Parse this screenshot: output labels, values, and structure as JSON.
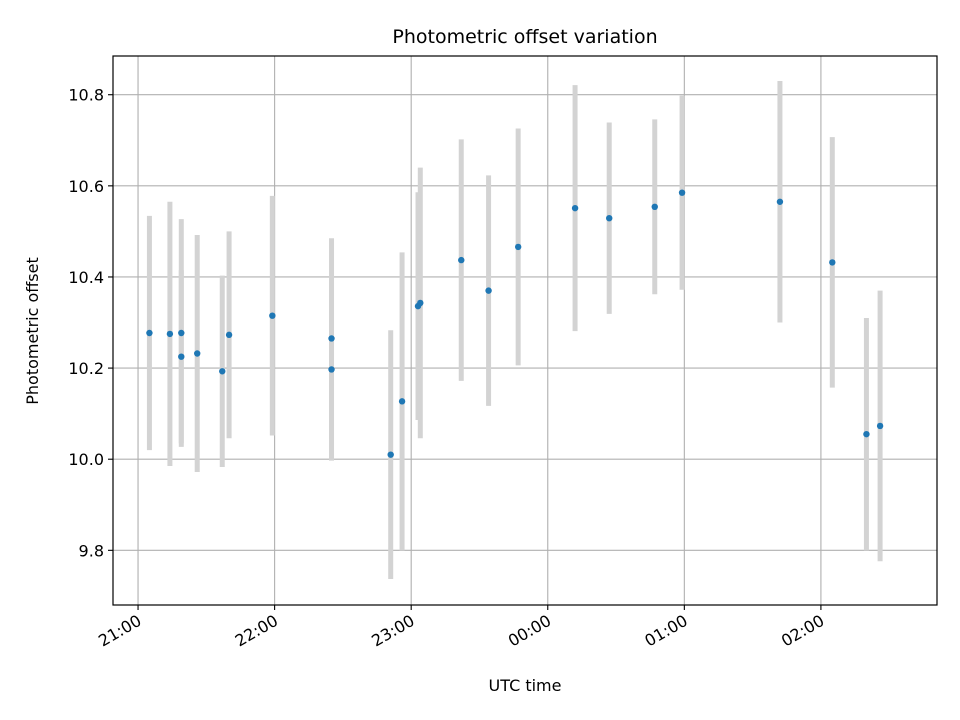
{
  "chart_data": {
    "type": "scatter",
    "title": "Photometric offset variation",
    "xlabel": "UTC time",
    "ylabel": "Photometric offset",
    "x_unit": "UTC time of day (hours, continuing past midnight)",
    "xlim": [
      "20:49",
      "26:51"
    ],
    "ylim": [
      9.68,
      10.885
    ],
    "x_ticks": [
      "21:00",
      "22:00",
      "23:00",
      "00:00",
      "01:00",
      "02:00"
    ],
    "y_ticks": [
      "9.8",
      "10.0",
      "10.2",
      "10.4",
      "10.6",
      "10.8"
    ],
    "grid": true,
    "series": [
      {
        "marker_color": "#1f77b4",
        "errorbar_color": "#d3d3d3",
        "points": [
          {
            "x": "21:05",
            "y": 10.277,
            "err": 0.257
          },
          {
            "x": "21:14",
            "y": 10.275,
            "err": 0.29
          },
          {
            "x": "21:19",
            "y": 10.277,
            "err": 0.25
          },
          {
            "x": "21:19",
            "y": 10.225,
            "err": 0.19
          },
          {
            "x": "21:26",
            "y": 10.232,
            "err": 0.26
          },
          {
            "x": "21:37",
            "y": 10.193,
            "err": 0.21
          },
          {
            "x": "21:40",
            "y": 10.273,
            "err": 0.227
          },
          {
            "x": "21:59",
            "y": 10.315,
            "err": 0.263
          },
          {
            "x": "22:25",
            "y": 10.265,
            "err": 0.22
          },
          {
            "x": "22:25",
            "y": 10.197,
            "err": 0.2
          },
          {
            "x": "22:51",
            "y": 10.01,
            "err": 0.273
          },
          {
            "x": "22:56",
            "y": 10.127,
            "err": 0.327
          },
          {
            "x": "23:03",
            "y": 10.336,
            "err": 0.25
          },
          {
            "x": "23:04",
            "y": 10.343,
            "err": 0.297
          },
          {
            "x": "23:22",
            "y": 10.437,
            "err": 0.265
          },
          {
            "x": "23:34",
            "y": 10.37,
            "err": 0.253
          },
          {
            "x": "23:47",
            "y": 10.466,
            "err": 0.26
          },
          {
            "x": "24:12",
            "y": 10.551,
            "err": 0.27
          },
          {
            "x": "24:27",
            "y": 10.529,
            "err": 0.21
          },
          {
            "x": "24:47",
            "y": 10.554,
            "err": 0.192
          },
          {
            "x": "24:59",
            "y": 10.585,
            "err": 0.213
          },
          {
            "x": "25:42",
            "y": 10.565,
            "err": 0.265
          },
          {
            "x": "26:05",
            "y": 10.432,
            "err": 0.275
          },
          {
            "x": "26:20",
            "y": 10.055,
            "err": 0.255
          },
          {
            "x": "26:26",
            "y": 10.073,
            "err": 0.297
          }
        ]
      }
    ]
  }
}
